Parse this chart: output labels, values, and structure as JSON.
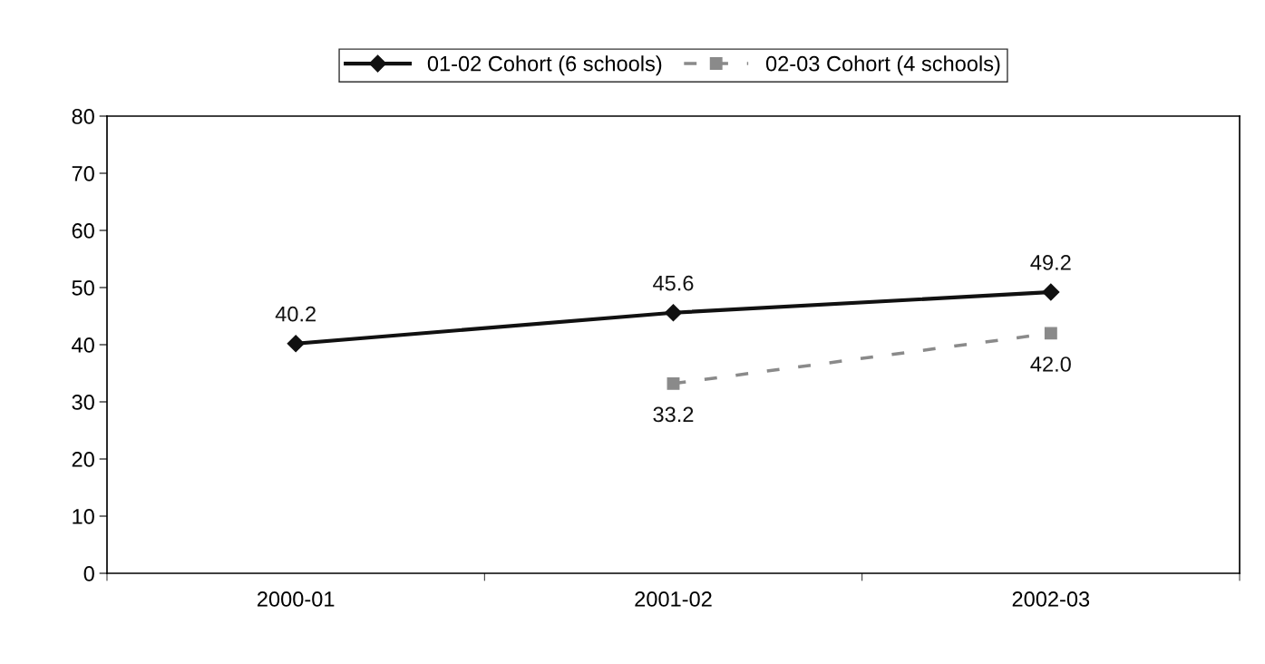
{
  "chart_data": {
    "type": "line",
    "categories": [
      "2000-01",
      "2001-02",
      "2002-03"
    ],
    "series": [
      {
        "name": "01-02 Cohort (6 schools)",
        "color": "#111111",
        "values": [
          40.2,
          45.6,
          49.2
        ],
        "value_labels": [
          "40.2",
          "45.6",
          "49.2"
        ],
        "marker": "diamond",
        "line_style": "solid"
      },
      {
        "name": "02-03 Cohort (4 schools)",
        "color": "#8a8a8a",
        "values": [
          null,
          33.2,
          42.0
        ],
        "value_labels": [
          null,
          "33.2",
          "42.0"
        ],
        "marker": "square",
        "line_style": "dashed"
      }
    ],
    "ylim": [
      0,
      80
    ],
    "yticks": [
      0,
      10,
      20,
      30,
      40,
      50,
      60,
      70,
      80
    ],
    "grid": false,
    "legend": "top"
  }
}
